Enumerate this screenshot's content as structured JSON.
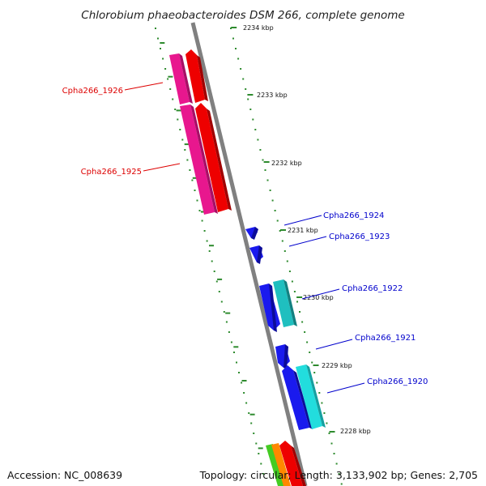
{
  "title": "Chlorobium phaeobacteroides DSM 266, complete genome",
  "accession_text": "Accession: NC_008639",
  "summary_text": "Topology: circular; Length: 3,133,902 bp; Genes: 2,705",
  "colors": {
    "backbone": "#808080",
    "dots": "#2e8b2e",
    "minus_label": "#dd0000",
    "plus_label": "#0000cc"
  },
  "ticks": [
    "2234 kbp",
    "2233 kbp",
    "2232 kbp",
    "2231 kbp",
    "2230 kbp",
    "2229 kbp",
    "2228 kbp"
  ],
  "genes": [
    {
      "id": "Cpha266_1926",
      "strand": "-",
      "colors": [
        "#e8178e",
        "#ee0000"
      ]
    },
    {
      "id": "Cpha266_1925",
      "strand": "-",
      "colors": [
        "#e8178e",
        "#ee0000"
      ]
    },
    {
      "id": "Cpha266_1924",
      "strand": "+",
      "colors": [
        "#1a1aee"
      ]
    },
    {
      "id": "Cpha266_1923",
      "strand": "+",
      "colors": [
        "#1a1aee"
      ]
    },
    {
      "id": "Cpha266_1922",
      "strand": "+",
      "colors": [
        "#1a1aee",
        "#1fbfbf"
      ]
    },
    {
      "id": "Cpha266_1921",
      "strand": "+",
      "colors": [
        "#1a1aee"
      ]
    },
    {
      "id": "Cpha266_1920",
      "strand": "+",
      "colors": [
        "#1a1aee",
        "#22dddd"
      ]
    }
  ],
  "bottom_cluster_colors": [
    "#44cc22",
    "#ff8800",
    "#ee0000"
  ]
}
